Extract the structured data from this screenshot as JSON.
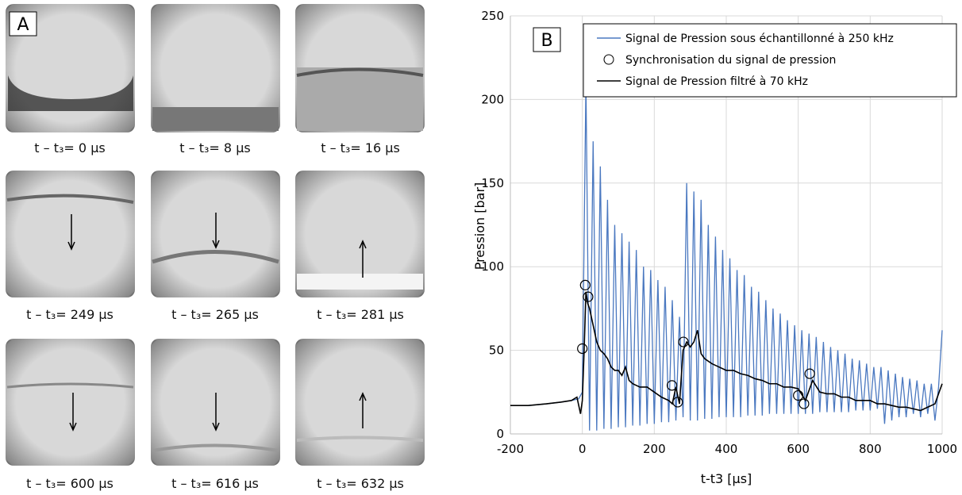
{
  "panel_a": {
    "label": "A",
    "captions": [
      "t – t₃= 0 µs",
      "t – t₃= 8 µs",
      "t – t₃= 16 µs",
      "t – t₃= 249 µs",
      "t – t₃= 265 µs",
      "t – t₃= 281 µs",
      "t – t₃= 600 µs",
      "t – t₃= 616 µs",
      "t – t₃= 632 µs"
    ]
  },
  "chart_data": {
    "type": "line",
    "panel_label": "B",
    "x_label": "t-t3 [µs]",
    "y_label": "Pression [bar]",
    "xlim": [
      -200,
      1000
    ],
    "xticks": [
      -200,
      0,
      200,
      400,
      600,
      800,
      1000
    ],
    "ylim": [
      0,
      250
    ],
    "yticks": [
      0,
      50,
      100,
      150,
      200,
      250
    ],
    "grid": true,
    "legend": "upper right",
    "series": [
      {
        "name": "Signal de Pression sous échantillonné à 250 kHz",
        "type": "line",
        "color": "#4a78c0",
        "x": [
          -200,
          -150,
          -100,
          -60,
          -30,
          -10,
          0,
          10,
          20,
          30,
          40,
          50,
          60,
          70,
          80,
          90,
          100,
          110,
          120,
          130,
          140,
          150,
          160,
          170,
          180,
          190,
          200,
          210,
          220,
          230,
          240,
          250,
          260,
          270,
          280,
          290,
          300,
          310,
          320,
          330,
          340,
          350,
          360,
          370,
          380,
          390,
          400,
          410,
          420,
          430,
          440,
          450,
          460,
          470,
          480,
          490,
          500,
          510,
          520,
          530,
          540,
          550,
          560,
          570,
          580,
          590,
          600,
          610,
          620,
          630,
          640,
          650,
          660,
          670,
          680,
          690,
          700,
          710,
          720,
          730,
          740,
          750,
          760,
          770,
          780,
          790,
          800,
          810,
          820,
          830,
          840,
          850,
          860,
          870,
          880,
          890,
          900,
          910,
          920,
          930,
          940,
          950,
          960,
          970,
          980,
          990,
          1000
        ],
        "values": [
          17,
          17,
          18,
          19,
          20,
          21,
          25,
          210,
          2,
          175,
          2,
          160,
          3,
          140,
          3,
          125,
          4,
          120,
          4,
          115,
          5,
          110,
          5,
          100,
          6,
          98,
          6,
          92,
          7,
          88,
          7,
          80,
          8,
          70,
          10,
          150,
          8,
          145,
          8,
          140,
          9,
          125,
          9,
          118,
          10,
          110,
          10,
          105,
          10,
          98,
          10,
          95,
          11,
          88,
          11,
          85,
          11,
          80,
          12,
          75,
          12,
          72,
          12,
          68,
          12,
          65,
          12,
          62,
          12,
          60,
          12,
          58,
          13,
          55,
          13,
          52,
          13,
          50,
          13,
          48,
          13,
          45,
          14,
          44,
          14,
          42,
          14,
          40,
          15,
          40,
          6,
          38,
          8,
          36,
          10,
          34,
          10,
          33,
          12,
          32,
          10,
          30,
          12,
          30,
          8,
          28,
          62
        ]
      },
      {
        "name": "Synchronisation du signal de pression",
        "type": "scatter",
        "color": "#000000",
        "x": [
          0,
          8,
          16,
          249,
          265,
          281,
          600,
          616,
          632
        ],
        "values": [
          51,
          89,
          82,
          29,
          19,
          55,
          23,
          18,
          36
        ]
      },
      {
        "name": "Signal de Pression filtré à 70 kHz",
        "type": "line",
        "color": "#000000",
        "x": [
          -200,
          -150,
          -100,
          -60,
          -30,
          -15,
          -5,
          0,
          5,
          10,
          15,
          20,
          30,
          40,
          50,
          60,
          70,
          80,
          90,
          100,
          110,
          120,
          130,
          140,
          160,
          180,
          200,
          220,
          240,
          250,
          260,
          270,
          280,
          290,
          300,
          310,
          320,
          330,
          340,
          360,
          380,
          400,
          420,
          440,
          460,
          480,
          500,
          520,
          540,
          560,
          580,
          600,
          620,
          640,
          660,
          680,
          700,
          720,
          740,
          760,
          780,
          800,
          820,
          840,
          860,
          880,
          900,
          920,
          940,
          960,
          980,
          1000
        ],
        "values": [
          17,
          17,
          18,
          19,
          20,
          22,
          12,
          20,
          50,
          85,
          78,
          75,
          65,
          55,
          50,
          48,
          45,
          40,
          38,
          38,
          35,
          40,
          32,
          30,
          28,
          28,
          25,
          22,
          20,
          18,
          28,
          18,
          50,
          55,
          52,
          55,
          62,
          48,
          45,
          42,
          40,
          38,
          38,
          36,
          35,
          33,
          32,
          30,
          30,
          28,
          28,
          27,
          20,
          32,
          25,
          24,
          24,
          22,
          22,
          20,
          20,
          20,
          18,
          18,
          17,
          16,
          16,
          15,
          14,
          16,
          18,
          30
        ]
      }
    ]
  }
}
